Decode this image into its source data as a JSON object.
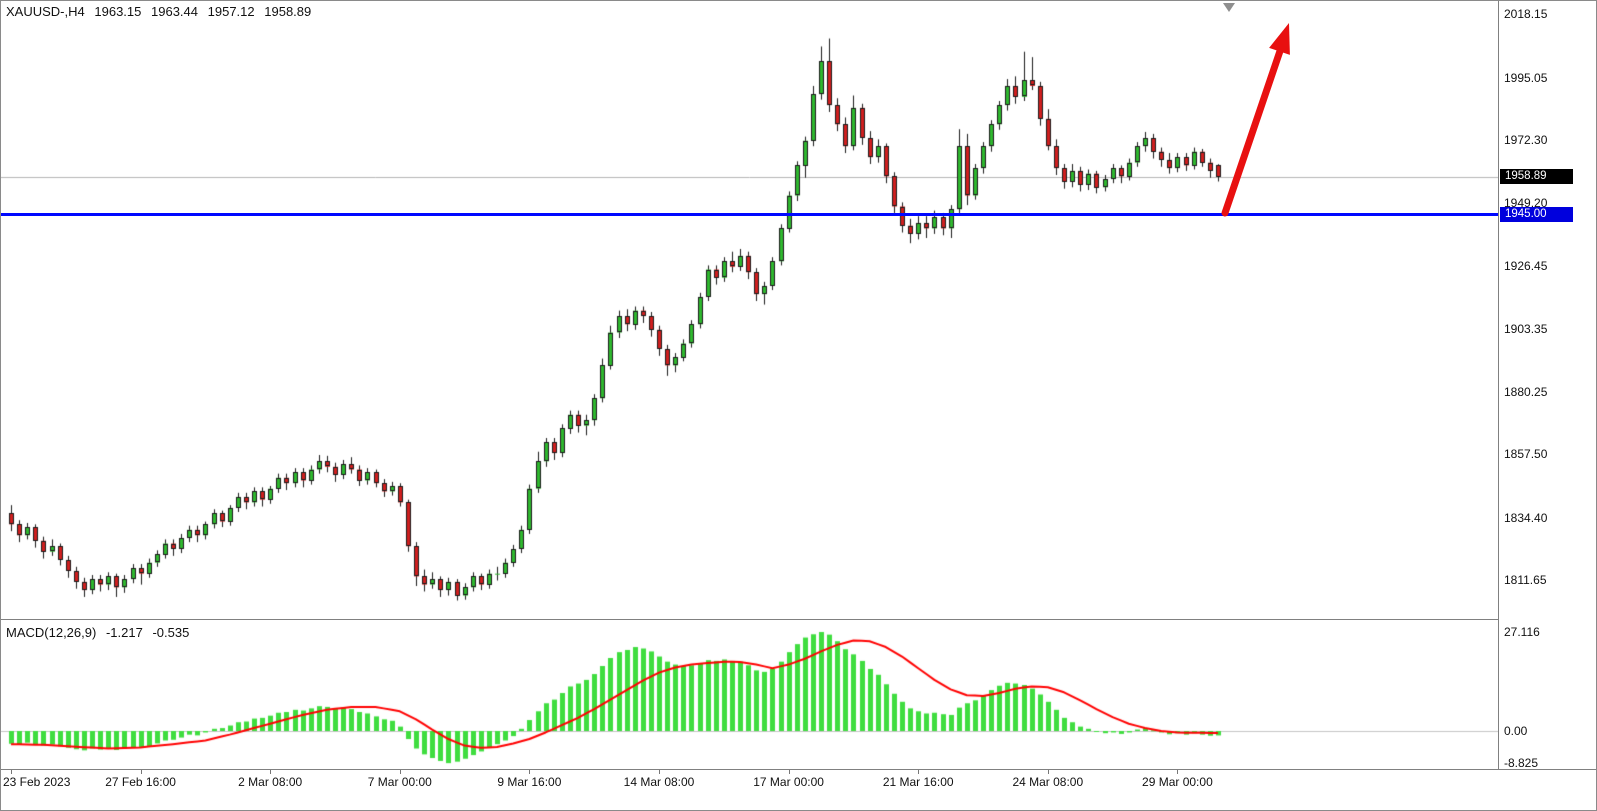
{
  "window": {
    "symbol_period": "XAUUSD-,H4"
  },
  "header": {
    "open": "1963.15",
    "high": "1963.44",
    "low": "1957.12",
    "close": "1958.89"
  },
  "price_axis": {
    "ticks": [
      "2018.15",
      "1995.05",
      "1972.30",
      "1949.20",
      "1926.45",
      "1903.35",
      "1880.25",
      "1857.50",
      "1834.40",
      "1811.65"
    ],
    "current_price_label": "1958.89",
    "support_price_label": "1945.00"
  },
  "macd_panel": {
    "label": "MACD(12,26,9)",
    "main_value": "-1.217",
    "signal_value": "-0.535",
    "ticks": [
      "27.116",
      "0.00",
      "-8.825"
    ]
  },
  "colors": {
    "bull": "#2eb82e",
    "bear": "#d01f1f",
    "wick": "#1a1a1a",
    "candle_border": "#1a1a1a",
    "hist": "#3fdd3f",
    "signal": "#ff0000",
    "support_line": "#0008ff",
    "arrow": "#e81010",
    "price_line": "#b4b4b4",
    "tag_current_bg": "#000000",
    "tag_support_bg": "#0000dd"
  },
  "chart_data": {
    "type": "candlestick",
    "title": "XAUUSD- H4 candlestick chart with MACD(12,26,9)",
    "price_range_visible": [
      1797.5,
      2023.0
    ],
    "current_price": 1958.89,
    "price_ticks": [
      2018.15,
      1995.05,
      1972.3,
      1949.2,
      1926.45,
      1903.35,
      1880.25,
      1857.5,
      1834.4,
      1811.65
    ],
    "time_labels": [
      {
        "index": 0,
        "text": "23 Feb 2023"
      },
      {
        "index": 16,
        "text": "27 Feb 16:00"
      },
      {
        "index": 32,
        "text": "2 Mar 08:00"
      },
      {
        "index": 48,
        "text": "7 Mar 00:00"
      },
      {
        "index": 64,
        "text": "9 Mar 16:00"
      },
      {
        "index": 80,
        "text": "14 Mar 08:00"
      },
      {
        "index": 96,
        "text": "17 Mar 00:00"
      },
      {
        "index": 112,
        "text": "21 Mar 16:00"
      },
      {
        "index": 128,
        "text": "24 Mar 08:00"
      },
      {
        "index": 144,
        "text": "29 Mar 00:00"
      }
    ],
    "annotations": {
      "support_line_price": 1945.0,
      "arrow": "bullish-up-arrow"
    },
    "candles": [
      [
        1836,
        1839,
        1829.5,
        1832
      ],
      [
        1832,
        1833.5,
        1825.5,
        1828
      ],
      [
        1828,
        1832.5,
        1826.5,
        1831
      ],
      [
        1831,
        1832,
        1823.5,
        1826
      ],
      [
        1826,
        1827.5,
        1819.5,
        1822
      ],
      [
        1822,
        1826.5,
        1820.5,
        1824
      ],
      [
        1824,
        1825,
        1817,
        1819
      ],
      [
        1819,
        1820.5,
        1812.5,
        1815
      ],
      [
        1815,
        1816.5,
        1808.5,
        1811
      ],
      [
        1811,
        1812.5,
        1805.5,
        1808
      ],
      [
        1808,
        1813.5,
        1806.5,
        1812
      ],
      [
        1812,
        1813.5,
        1807.5,
        1810
      ],
      [
        1810,
        1814.5,
        1808,
        1813
      ],
      [
        1813,
        1814,
        1805.5,
        1809
      ],
      [
        1809,
        1813.5,
        1807,
        1812
      ],
      [
        1812,
        1817.5,
        1810.5,
        1816
      ],
      [
        1816,
        1817.5,
        1810,
        1814
      ],
      [
        1814,
        1819.5,
        1812.5,
        1818
      ],
      [
        1818,
        1822.5,
        1816.5,
        1821
      ],
      [
        1821,
        1826.5,
        1819.5,
        1825
      ],
      [
        1825,
        1826.5,
        1820.5,
        1823
      ],
      [
        1823,
        1828.5,
        1821.5,
        1827
      ],
      [
        1827,
        1831.5,
        1825.5,
        1830
      ],
      [
        1830,
        1831.5,
        1825.5,
        1828
      ],
      [
        1828,
        1833,
        1826.5,
        1832
      ],
      [
        1832,
        1837.5,
        1830.5,
        1836
      ],
      [
        1836,
        1837,
        1831,
        1833
      ],
      [
        1833,
        1839,
        1831.5,
        1838
      ],
      [
        1838,
        1843.5,
        1836.5,
        1842
      ],
      [
        1842,
        1843.5,
        1837.5,
        1840
      ],
      [
        1840,
        1845.5,
        1838.5,
        1844
      ],
      [
        1844,
        1845.5,
        1838.5,
        1841
      ],
      [
        1841,
        1846,
        1839.5,
        1845
      ],
      [
        1845,
        1850.5,
        1843.5,
        1849
      ],
      [
        1849,
        1850.5,
        1844.5,
        1847
      ],
      [
        1847,
        1852.5,
        1845.5,
        1851
      ],
      [
        1851,
        1852.5,
        1845.5,
        1848
      ],
      [
        1848,
        1853.5,
        1846.5,
        1852
      ],
      [
        1852,
        1857.3,
        1850.5,
        1855
      ],
      [
        1855,
        1857,
        1851,
        1853
      ],
      [
        1853,
        1854.5,
        1847.5,
        1850
      ],
      [
        1850,
        1855.5,
        1848.5,
        1854
      ],
      [
        1854,
        1856.5,
        1850.5,
        1852
      ],
      [
        1852,
        1853.5,
        1846,
        1848
      ],
      [
        1848,
        1852.5,
        1846.5,
        1851
      ],
      [
        1851,
        1852,
        1845.5,
        1847
      ],
      [
        1847,
        1848.5,
        1842,
        1844
      ],
      [
        1844,
        1847.5,
        1842.5,
        1846
      ],
      [
        1846,
        1847,
        1838.5,
        1840
      ],
      [
        1840,
        1841,
        1822,
        1824
      ],
      [
        1824,
        1825.5,
        1809.5,
        1813
      ],
      [
        1813,
        1815.5,
        1807.5,
        1810
      ],
      [
        1810,
        1814.5,
        1808.5,
        1812
      ],
      [
        1812,
        1813,
        1805.5,
        1808
      ],
      [
        1808,
        1812.5,
        1806,
        1811
      ],
      [
        1811,
        1812,
        1804.2,
        1806
      ],
      [
        1806,
        1810.5,
        1804.5,
        1809
      ],
      [
        1809,
        1814.5,
        1807.5,
        1813
      ],
      [
        1813,
        1814,
        1808,
        1810
      ],
      [
        1810,
        1815.5,
        1808.5,
        1814
      ],
      [
        1814,
        1816.5,
        1811.5,
        1814
      ],
      [
        1814,
        1819.5,
        1812.5,
        1818
      ],
      [
        1818,
        1824.5,
        1816.5,
        1823
      ],
      [
        1823,
        1831.5,
        1821.5,
        1830
      ],
      [
        1830,
        1846.5,
        1828.5,
        1845
      ],
      [
        1845,
        1858.5,
        1843.5,
        1855
      ],
      [
        1855,
        1863.5,
        1853,
        1862
      ],
      [
        1862,
        1863.5,
        1855.5,
        1858
      ],
      [
        1858,
        1868.5,
        1856.5,
        1867
      ],
      [
        1867,
        1873.5,
        1865,
        1872
      ],
      [
        1872,
        1873.5,
        1865.5,
        1868
      ],
      [
        1868,
        1872,
        1864.5,
        1870
      ],
      [
        1870,
        1879.5,
        1868,
        1878
      ],
      [
        1878,
        1892.5,
        1876.5,
        1890
      ],
      [
        1890,
        1904.5,
        1888.5,
        1902
      ],
      [
        1902,
        1910,
        1900,
        1908
      ],
      [
        1908,
        1910.5,
        1902.5,
        1905
      ],
      [
        1905,
        1911.5,
        1903,
        1910
      ],
      [
        1910,
        1911.5,
        1905.5,
        1908
      ],
      [
        1908,
        1909.5,
        1900.5,
        1903
      ],
      [
        1903,
        1904.5,
        1893.5,
        1896
      ],
      [
        1896,
        1897.5,
        1886.2,
        1890
      ],
      [
        1890,
        1894.5,
        1887.5,
        1893
      ],
      [
        1893,
        1899.5,
        1891.5,
        1898
      ],
      [
        1898,
        1906.5,
        1896.5,
        1905
      ],
      [
        1905,
        1916.5,
        1903.5,
        1915
      ],
      [
        1915,
        1926.5,
        1913.5,
        1925
      ],
      [
        1925,
        1926.5,
        1919.5,
        1922
      ],
      [
        1922,
        1929.5,
        1920.5,
        1928
      ],
      [
        1928,
        1931.5,
        1924,
        1926
      ],
      [
        1926,
        1932.5,
        1924.5,
        1930
      ],
      [
        1930,
        1931.5,
        1921.5,
        1924
      ],
      [
        1924,
        1925.5,
        1913.5,
        1916
      ],
      [
        1916,
        1920.5,
        1912.2,
        1919
      ],
      [
        1919,
        1929.5,
        1917.5,
        1928
      ],
      [
        1928,
        1941.5,
        1926.5,
        1940
      ],
      [
        1940,
        1953.5,
        1938.5,
        1952
      ],
      [
        1952,
        1964.5,
        1950,
        1963
      ],
      [
        1963,
        1973.5,
        1958.5,
        1972
      ],
      [
        1972,
        1992,
        1970,
        1989
      ],
      [
        1989,
        2006.4,
        1987,
        2001
      ],
      [
        2001,
        2009.3,
        1982.5,
        1985
      ],
      [
        1985,
        1987.5,
        1975.5,
        1978
      ],
      [
        1978,
        1980.5,
        1967.5,
        1970
      ],
      [
        1970,
        1988.5,
        1968.5,
        1984
      ],
      [
        1984,
        1985.5,
        1970.5,
        1973
      ],
      [
        1973,
        1975.5,
        1963.5,
        1966
      ],
      [
        1966,
        1972.5,
        1964,
        1970
      ],
      [
        1970,
        1971,
        1956.5,
        1959
      ],
      [
        1959,
        1960.5,
        1945.5,
        1948
      ],
      [
        1948,
        1949.5,
        1938.5,
        1941
      ],
      [
        1941,
        1943.5,
        1934.6,
        1938
      ],
      [
        1938,
        1944.5,
        1936,
        1942
      ],
      [
        1942,
        1944.5,
        1936.5,
        1940
      ],
      [
        1940,
        1946.5,
        1938,
        1944
      ],
      [
        1944,
        1945.5,
        1937.5,
        1940
      ],
      [
        1940,
        1948.5,
        1936.5,
        1947
      ],
      [
        1947,
        1976.2,
        1945.4,
        1970
      ],
      [
        1970,
        1974.5,
        1948.5,
        1952
      ],
      [
        1952,
        1963.5,
        1950.5,
        1962
      ],
      [
        1962,
        1971.5,
        1960,
        1970
      ],
      [
        1970,
        1979.5,
        1968,
        1978
      ],
      [
        1978,
        1986.5,
        1976,
        1985
      ],
      [
        1985,
        1994.5,
        1983,
        1992
      ],
      [
        1992,
        1995.5,
        1985.5,
        1988
      ],
      [
        1988,
        2004.5,
        1986.5,
        1994
      ],
      [
        1994,
        2002.5,
        1990.5,
        1992
      ],
      [
        1992,
        1993.5,
        1977.5,
        1980
      ],
      [
        1980,
        1983.5,
        1968.5,
        1970
      ],
      [
        1970,
        1972.5,
        1959.5,
        1962
      ],
      [
        1962,
        1963.5,
        1954.5,
        1957
      ],
      [
        1957,
        1963.5,
        1955,
        1961
      ],
      [
        1961,
        1962.5,
        1953.5,
        1956
      ],
      [
        1956,
        1961.5,
        1954,
        1960
      ],
      [
        1960,
        1961,
        1952.8,
        1955
      ],
      [
        1955,
        1959.5,
        1953.5,
        1958
      ],
      [
        1958,
        1963.5,
        1956.5,
        1962
      ],
      [
        1962,
        1963,
        1956.5,
        1959
      ],
      [
        1959,
        1965.5,
        1957.5,
        1964
      ],
      [
        1964,
        1971.5,
        1962.5,
        1970
      ],
      [
        1970,
        1975.2,
        1968,
        1973
      ],
      [
        1973,
        1974.5,
        1965.5,
        1968
      ],
      [
        1968,
        1969.5,
        1962.5,
        1965
      ],
      [
        1965,
        1967.5,
        1960,
        1962
      ],
      [
        1962,
        1967.5,
        1960.5,
        1966
      ],
      [
        1966,
        1967.5,
        1961,
        1963
      ],
      [
        1963,
        1969.5,
        1961.5,
        1968
      ],
      [
        1968,
        1969,
        1962.5,
        1964
      ],
      [
        1964,
        1965.5,
        1958.5,
        1961
      ],
      [
        1963.15,
        1963.44,
        1957.12,
        1958.89
      ]
    ],
    "indicator": {
      "name": "MACD",
      "params": [
        12,
        26,
        9
      ],
      "last_main": -1.217,
      "last_signal": -0.535,
      "axis_ticks": [
        27.116,
        0.0,
        -8.825
      ],
      "histogram": [
        -3.5,
        -3.8,
        -3.2,
        -3.6,
        -4,
        -3.7,
        -4.2,
        -4.6,
        -5,
        -5.3,
        -4.8,
        -5.1,
        -4.7,
        -5.2,
        -4.9,
        -4.4,
        -4.6,
        -4.1,
        -3.4,
        -2.6,
        -2.4,
        -1.8,
        -1,
        -1.2,
        -0.4,
        0.6,
        0.8,
        1.5,
        2.4,
        2.6,
        3.4,
        3.6,
        4.2,
        5,
        5.2,
        5.8,
        5.6,
        6.2,
        6.8,
        6.6,
        6.2,
        6.4,
        6,
        5.2,
        4.8,
        4,
        3.2,
        2.8,
        1.2,
        -2.2,
        -4.8,
        -6.4,
        -7.4,
        -8.2,
        -8.8,
        -8.4,
        -7.6,
        -6.6,
        -5.6,
        -4.4,
        -3.6,
        -2.6,
        -1.4,
        0.6,
        3,
        5.4,
        7.6,
        8.6,
        10.4,
        12.2,
        13,
        14,
        15.6,
        17.8,
        20,
        21.6,
        22.2,
        23,
        22.6,
        21.8,
        20.4,
        19,
        18.2,
        17.8,
        18,
        18.6,
        19.4,
        19.2,
        19.6,
        19.2,
        19,
        18,
        16.6,
        16.2,
        17,
        19,
        21.6,
        23.8,
        25.6,
        26.5,
        27.116,
        26.4,
        24.6,
        22.4,
        21,
        19.2,
        17,
        15.4,
        12.8,
        10.2,
        8,
        6.2,
        5.4,
        4.8,
        5,
        4.6,
        4.4,
        6.4,
        7.6,
        8.4,
        9.8,
        11.2,
        12.4,
        13.2,
        13,
        12.6,
        11.6,
        10,
        8,
        5.8,
        3.6,
        2.4,
        1.2,
        0.6,
        -0.2,
        -0.6,
        -0.4,
        -0.8,
        -0.4,
        0.4,
        0.8,
        0.2,
        -0.4,
        -0.9,
        -0.6,
        -1,
        -0.6,
        -1,
        -1.3,
        -1.217
      ],
      "signal_points": [
        [
          0,
          -3.6
        ],
        [
          4,
          -3.8
        ],
        [
          8,
          -4.3
        ],
        [
          12,
          -4.8
        ],
        [
          16,
          -4.5
        ],
        [
          20,
          -3.6
        ],
        [
          24,
          -2.6
        ],
        [
          27,
          -1.0
        ],
        [
          30,
          0.8
        ],
        [
          33,
          2.6
        ],
        [
          36,
          4.4
        ],
        [
          39,
          5.8
        ],
        [
          42,
          6.6
        ],
        [
          45,
          6.6
        ],
        [
          48,
          5.4
        ],
        [
          50,
          3.2
        ],
        [
          52,
          0.4
        ],
        [
          54,
          -2.2
        ],
        [
          56,
          -4.0
        ],
        [
          58,
          -4.6
        ],
        [
          60,
          -4.4
        ],
        [
          62,
          -3.4
        ],
        [
          64,
          -2.2
        ],
        [
          66,
          -0.4
        ],
        [
          68,
          1.6
        ],
        [
          70,
          3.6
        ],
        [
          72,
          6.0
        ],
        [
          74,
          8.6
        ],
        [
          76,
          11.2
        ],
        [
          78,
          13.8
        ],
        [
          80,
          16.0
        ],
        [
          82,
          17.4
        ],
        [
          84,
          18.2
        ],
        [
          86,
          18.6
        ],
        [
          88,
          19.0
        ],
        [
          90,
          18.9
        ],
        [
          92,
          18.2
        ],
        [
          94,
          17.2
        ],
        [
          96,
          18.2
        ],
        [
          98,
          19.8
        ],
        [
          100,
          21.8
        ],
        [
          102,
          23.6
        ],
        [
          104,
          24.8
        ],
        [
          106,
          24.6
        ],
        [
          108,
          23.0
        ],
        [
          110,
          20.4
        ],
        [
          112,
          17.2
        ],
        [
          114,
          14.0
        ],
        [
          116,
          11.4
        ],
        [
          118,
          9.8
        ],
        [
          120,
          9.6
        ],
        [
          122,
          10.4
        ],
        [
          124,
          11.6
        ],
        [
          126,
          12.2
        ],
        [
          128,
          12.0
        ],
        [
          130,
          10.6
        ],
        [
          132,
          8.4
        ],
        [
          134,
          6.0
        ],
        [
          136,
          3.8
        ],
        [
          138,
          2.0
        ],
        [
          140,
          0.8
        ],
        [
          142,
          0.0
        ],
        [
          144,
          -0.4
        ],
        [
          146,
          -0.5
        ],
        [
          149,
          -0.535
        ]
      ]
    }
  }
}
